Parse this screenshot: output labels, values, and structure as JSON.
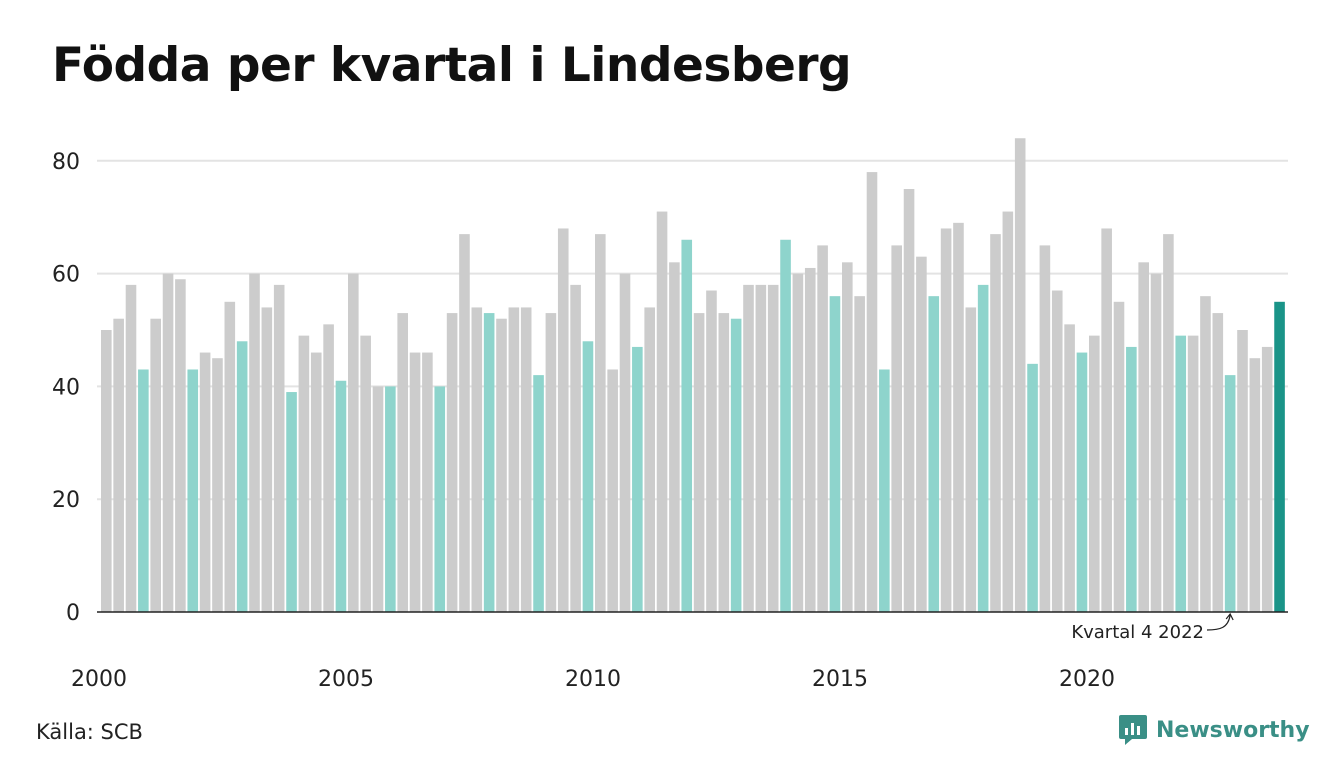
{
  "source": "Källa: SCB",
  "brand": {
    "name": "Newsworthy",
    "icon": "newsworthy-logo-icon"
  },
  "colors": {
    "other": "#cccccc",
    "q4": "#8ed4cc",
    "latest": "#1a9488",
    "grid": "#e3e3e3",
    "axis": "#222222"
  },
  "chart_data": {
    "type": "bar",
    "title": "Födda per kvartal i Lindesberg",
    "xlabel": "",
    "ylabel": "",
    "ylim": [
      0,
      85
    ],
    "yticks": [
      0,
      20,
      40,
      60,
      80
    ],
    "xticks": [
      "2000",
      "2005",
      "2010",
      "2015",
      "2020"
    ],
    "grid": true,
    "legend": "none",
    "start": {
      "year": 2000,
      "quarter": 1
    },
    "values": [
      50,
      52,
      58,
      43,
      52,
      60,
      59,
      43,
      46,
      45,
      55,
      48,
      60,
      54,
      58,
      39,
      49,
      46,
      51,
      41,
      60,
      49,
      40,
      40,
      53,
      46,
      46,
      40,
      53,
      67,
      54,
      53,
      52,
      54,
      54,
      42,
      53,
      68,
      58,
      48,
      67,
      43,
      60,
      47,
      54,
      71,
      62,
      66,
      53,
      57,
      53,
      52,
      58,
      58,
      58,
      66,
      60,
      61,
      65,
      56,
      62,
      56,
      78,
      43,
      65,
      75,
      63,
      56,
      68,
      69,
      54,
      58,
      67,
      71,
      84,
      44,
      65,
      57,
      51,
      46,
      49,
      68,
      55,
      47,
      62,
      60,
      67,
      49,
      49,
      56,
      53,
      42,
      50,
      45,
      47,
      55
    ],
    "annotation": {
      "text": "Kvartal 4 2022",
      "index": 91
    }
  }
}
